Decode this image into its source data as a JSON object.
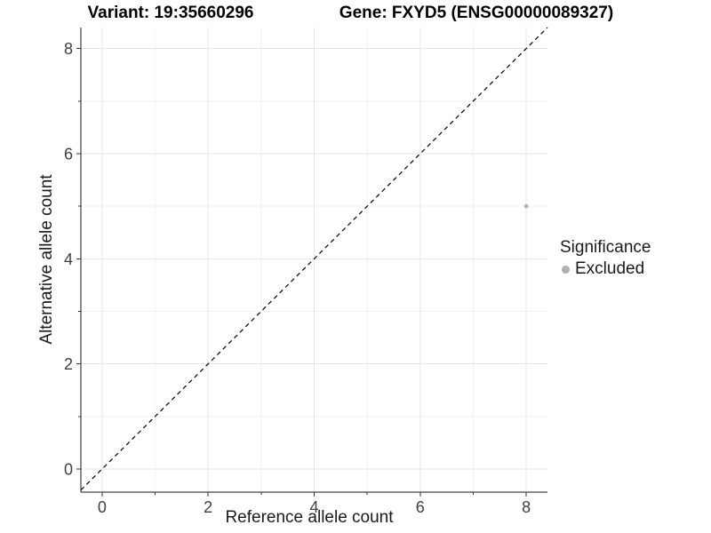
{
  "titles": {
    "left": "Variant: 19:35660296",
    "right": "Gene: FXYD5 (ENSG00000089327)"
  },
  "chart_data": {
    "type": "scatter",
    "xlabel": "Reference allele count",
    "ylabel": "Alternative allele count",
    "xlim": [
      -0.4,
      8.4
    ],
    "ylim": [
      -0.44,
      8.4
    ],
    "x_major_ticks": [
      0,
      2,
      4,
      6,
      8
    ],
    "x_minor_ticks": [
      1,
      3,
      5,
      7
    ],
    "y_major_ticks": [
      0,
      2,
      4,
      6,
      8
    ],
    "y_minor_ticks": [
      1,
      3,
      5,
      7
    ],
    "grid": true,
    "identity_line": {
      "slope": 1,
      "intercept": 0,
      "style": "dashed",
      "color": "#000000"
    },
    "points": [
      {
        "x": 8,
        "y": 5,
        "series": "Excluded"
      }
    ],
    "legend": {
      "title": "Significance",
      "position": "right",
      "items": [
        {
          "label": "Excluded",
          "color": "#b0b0b0"
        }
      ]
    }
  },
  "colors": {
    "point": "#b3b3b3",
    "grid_major": "#e6e6e6",
    "grid_minor": "#f2f2f2",
    "axis_line": "#1a1a1a",
    "tick_mark": "#333333",
    "tick_label": "#404040"
  }
}
